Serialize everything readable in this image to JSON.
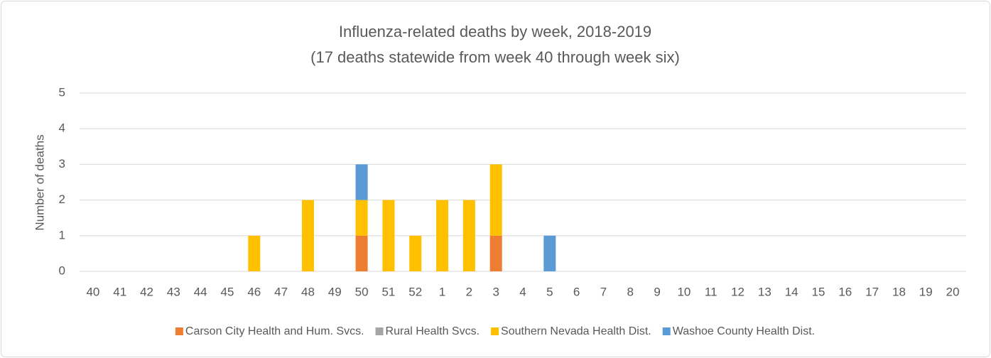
{
  "chart_data": {
    "type": "bar",
    "stacked": true,
    "title": "Influenza-related deaths by week, 2018-2019",
    "subtitle": "(17 deaths statewide from week 40 through week six)",
    "y_label": "Number of deaths",
    "categories": [
      "40",
      "41",
      "42",
      "43",
      "44",
      "45",
      "46",
      "47",
      "48",
      "49",
      "50",
      "51",
      "52",
      "1",
      "2",
      "3",
      "4",
      "5",
      "6",
      "7",
      "8",
      "9",
      "10",
      "11",
      "12",
      "13",
      "14",
      "15",
      "16",
      "17",
      "18",
      "19",
      "20"
    ],
    "series": [
      {
        "name": "Carson City Health and Hum. Svcs.",
        "color": "#ed7d31",
        "values": [
          0,
          0,
          0,
          0,
          0,
          0,
          0,
          0,
          0,
          0,
          1,
          0,
          0,
          0,
          0,
          1,
          0,
          0,
          0,
          null,
          null,
          null,
          null,
          null,
          null,
          null,
          null,
          null,
          null,
          null,
          null,
          null,
          null
        ]
      },
      {
        "name": "Rural Health Svcs.",
        "color": "#a5a5a5",
        "values": [
          0,
          0,
          0,
          0,
          0,
          0,
          0,
          0,
          0,
          0,
          0,
          0,
          0,
          0,
          0,
          0,
          0,
          0,
          0,
          null,
          null,
          null,
          null,
          null,
          null,
          null,
          null,
          null,
          null,
          null,
          null,
          null,
          null
        ]
      },
      {
        "name": "Southern Nevada Health Dist.",
        "color": "#ffc000",
        "values": [
          0,
          0,
          0,
          0,
          0,
          0,
          1,
          0,
          2,
          0,
          1,
          2,
          1,
          2,
          2,
          2,
          0,
          0,
          0,
          null,
          null,
          null,
          null,
          null,
          null,
          null,
          null,
          null,
          null,
          null,
          null,
          null,
          null
        ]
      },
      {
        "name": "Washoe County Health Dist.",
        "color": "#5b9bd5",
        "values": [
          0,
          0,
          0,
          0,
          0,
          0,
          0,
          0,
          0,
          0,
          1,
          0,
          0,
          0,
          0,
          0,
          0,
          1,
          0,
          null,
          null,
          null,
          null,
          null,
          null,
          null,
          null,
          null,
          null,
          null,
          null,
          null,
          null
        ]
      }
    ],
    "ylim": [
      0,
      5
    ],
    "yticks": [
      0,
      1,
      2,
      3,
      4,
      5
    ],
    "grid": true,
    "legend": "bottom"
  }
}
